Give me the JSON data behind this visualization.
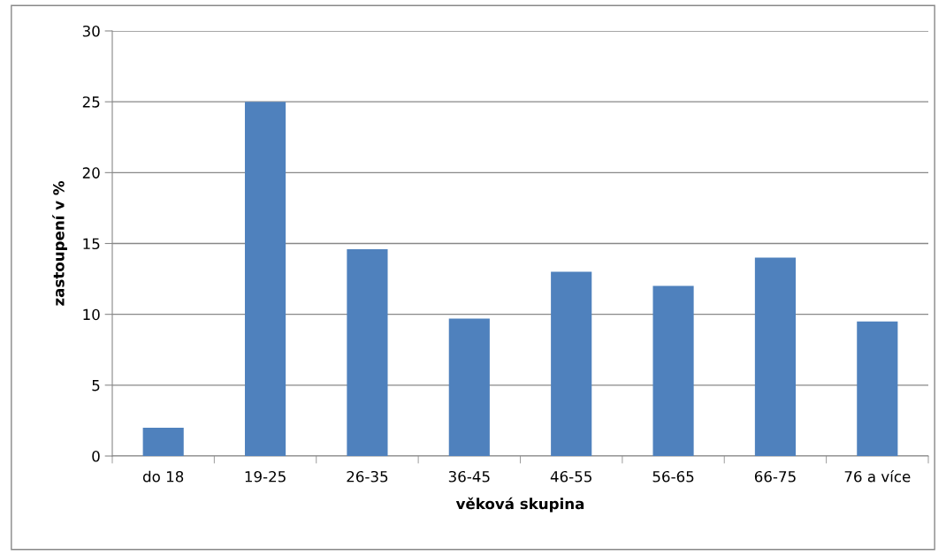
{
  "chart_data": {
    "type": "bar",
    "xlabel": "věková skupina",
    "ylabel": "zastoupení v %",
    "categories": [
      "do 18",
      "19-25",
      "26-35",
      "36-45",
      "46-55",
      "56-65",
      "66-75",
      "76 a více"
    ],
    "values": [
      2,
      25,
      14.6,
      9.7,
      13,
      12,
      14,
      9.5
    ],
    "color": "#4f81bd",
    "ylim": [
      0,
      30
    ],
    "yticks": [
      0,
      5,
      10,
      15,
      20,
      25,
      30
    ],
    "grid": "y",
    "legend": false
  }
}
